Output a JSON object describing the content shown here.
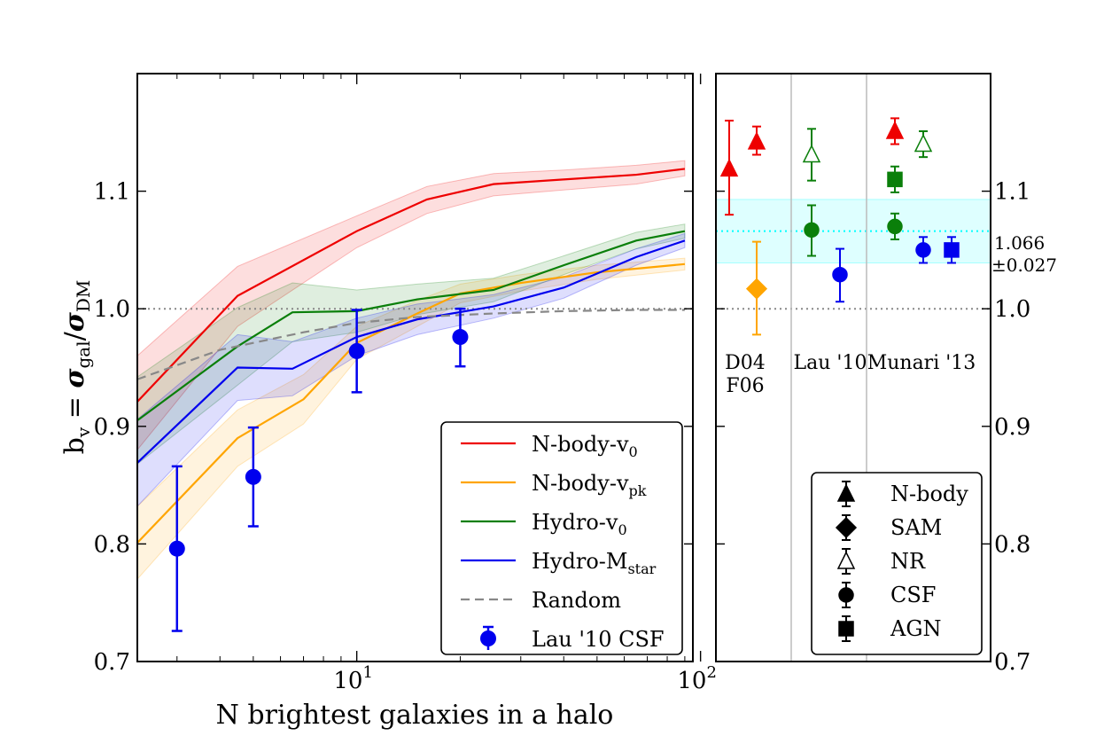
{
  "chart_data": [
    {
      "type": "line",
      "xscale": "log",
      "xlim": [
        2.3,
        95
      ],
      "ylim": [
        0.7,
        1.2
      ],
      "xlabel": "N brightest galaxies in a halo",
      "ylabel": "b_v = σ_gal/σ_DM",
      "ylabel_parts": {
        "b": "b",
        "b_sub": "v",
        "eq": " = ",
        "s1": "σ",
        "s1_sub": "gal",
        "slash": "/",
        "s2": "σ",
        "s2_sub": "DM"
      },
      "xticks": [
        {
          "value": 10,
          "base": "10",
          "exp": "1"
        },
        {
          "value": 100,
          "base": "10",
          "exp": "2"
        }
      ],
      "yticks": [
        {
          "value": 0.7,
          "label": "0.7"
        },
        {
          "value": 0.8,
          "label": "0.8"
        },
        {
          "value": 0.9,
          "label": "0.9"
        },
        {
          "value": 1.0,
          "label": "1.0"
        },
        {
          "value": 1.1,
          "label": "1.1"
        }
      ],
      "reference_line": {
        "y": 1.0,
        "color": "#888888",
        "style": "dotted"
      },
      "legend_position": "lower-right",
      "series": [
        {
          "name": "N-body-v0",
          "label": "N-body-v",
          "label_sub": "0",
          "color": "#ee0000",
          "x": [
            2.3,
            4.5,
            10,
            16,
            25,
            40,
            65,
            90
          ],
          "y": [
            0.921,
            1.011,
            1.066,
            1.093,
            1.106,
            1.11,
            1.114,
            1.119
          ],
          "band_low": [
            0.88,
            0.985,
            1.052,
            1.081,
            1.096,
            1.101,
            1.106,
            1.113
          ],
          "band_high": [
            0.96,
            1.036,
            1.079,
            1.104,
            1.115,
            1.118,
            1.122,
            1.126
          ]
        },
        {
          "name": "N-body-vpk",
          "label": "N-body-v",
          "label_sub": "pk",
          "color": "#ffa500",
          "x": [
            2.3,
            4.5,
            7,
            10,
            15,
            20,
            30,
            50,
            90
          ],
          "y": [
            0.801,
            0.89,
            0.923,
            0.971,
            0.996,
            1.013,
            1.022,
            1.031,
            1.038
          ],
          "band_low": [
            0.77,
            0.866,
            0.902,
            0.957,
            0.985,
            1.005,
            1.015,
            1.025,
            1.033
          ],
          "band_high": [
            0.832,
            0.914,
            0.944,
            0.985,
            1.007,
            1.021,
            1.029,
            1.037,
            1.043
          ]
        },
        {
          "name": "Hydro-v0",
          "label": "Hydro-v",
          "label_sub": "0",
          "color": "#0a7f0a",
          "x": [
            2.3,
            4.5,
            6.5,
            10,
            15,
            25,
            40,
            65,
            90
          ],
          "y": [
            0.905,
            0.968,
            0.997,
            0.998,
            1.008,
            1.016,
            1.037,
            1.058,
            1.066
          ],
          "band_low": [
            0.868,
            0.935,
            0.972,
            0.98,
            0.995,
            1.006,
            1.029,
            1.051,
            1.06
          ],
          "band_high": [
            0.942,
            1.001,
            1.022,
            1.016,
            1.021,
            1.026,
            1.045,
            1.065,
            1.072
          ]
        },
        {
          "name": "Hydro-Mstar",
          "label": "Hydro-M",
          "label_sub": "star",
          "color": "#0000ee",
          "x": [
            2.3,
            4.5,
            6.5,
            10,
            15,
            25,
            40,
            65,
            90
          ],
          "y": [
            0.869,
            0.95,
            0.949,
            0.976,
            0.991,
            1.002,
            1.018,
            1.044,
            1.058
          ],
          "band_low": [
            0.832,
            0.922,
            0.926,
            0.96,
            0.978,
            0.992,
            1.009,
            1.037,
            1.052
          ],
          "band_high": [
            0.906,
            0.978,
            0.972,
            0.992,
            1.004,
            1.012,
            1.027,
            1.051,
            1.064
          ]
        },
        {
          "name": "Random",
          "label": "Random",
          "color": "#888888",
          "style": "dashed",
          "x": [
            2.3,
            4,
            7,
            10,
            15,
            25,
            40,
            65,
            90
          ],
          "y": [
            0.94,
            0.965,
            0.98,
            0.988,
            0.993,
            0.996,
            0.998,
            0.999,
            0.999
          ]
        }
      ],
      "points": {
        "name": "Lau '10 CSF",
        "label": "Lau '10 CSF",
        "color": "#0000ee",
        "x": [
          3,
          5,
          10,
          20
        ],
        "y": [
          0.796,
          0.857,
          0.964,
          0.976
        ],
        "err_low": [
          0.726,
          0.815,
          0.929,
          0.951
        ],
        "err_high": [
          0.866,
          0.899,
          0.999,
          1.0
        ]
      }
    },
    {
      "type": "scatter",
      "ylim": [
        0.7,
        1.2
      ],
      "yticks": [
        {
          "value": 0.7,
          "label": "0.7"
        },
        {
          "value": 0.8,
          "label": "0.8"
        },
        {
          "value": 0.9,
          "label": "0.9"
        },
        {
          "value": 1.0,
          "label": "1.0"
        },
        {
          "value": 1.1,
          "label": "1.1"
        }
      ],
      "ytick_side": "right",
      "reference_line": {
        "y": 1.0,
        "color": "#888888",
        "style": "dotted"
      },
      "band": {
        "center": 1.066,
        "halfwidth": 0.027,
        "label_value": "1.066",
        "label_err": "±0.027",
        "color": "#00ffff"
      },
      "groups": [
        {
          "name": "d04-f06",
          "lines": [
            "D04",
            "F06"
          ]
        },
        {
          "name": "lau",
          "lines": [
            "Lau '10"
          ]
        },
        {
          "name": "munari",
          "lines": [
            "Munari '13"
          ]
        }
      ],
      "points": [
        {
          "id": "d04-nbody",
          "group": 0,
          "slot": 0,
          "marker": "triangle",
          "filled": true,
          "color": "#ee0000",
          "y": 1.119,
          "err_low": 1.08,
          "err_high": 1.16
        },
        {
          "id": "f06-nbody",
          "group": 0,
          "slot": 1,
          "marker": "triangle",
          "filled": true,
          "color": "#ee0000",
          "y": 1.142,
          "err_low": 1.131,
          "err_high": 1.155
        },
        {
          "id": "f06-sam",
          "group": 0,
          "slot": 1,
          "marker": "diamond",
          "filled": true,
          "color": "#ffa500",
          "y": 1.017,
          "err_low": 0.978,
          "err_high": 1.057
        },
        {
          "id": "lau-nr",
          "group": 1,
          "slot": 0,
          "marker": "triangle",
          "filled": false,
          "color": "#0a7f0a",
          "y": 1.131,
          "err_low": 1.109,
          "err_high": 1.153
        },
        {
          "id": "lau-csf-green",
          "group": 1,
          "slot": 0,
          "marker": "circle",
          "filled": true,
          "color": "#0a7f0a",
          "y": 1.067,
          "err_low": 1.045,
          "err_high": 1.088
        },
        {
          "id": "lau-csf-blue",
          "group": 1,
          "slot": 1,
          "marker": "circle",
          "filled": true,
          "color": "#0000ee",
          "y": 1.029,
          "err_low": 1.006,
          "err_high": 1.051
        },
        {
          "id": "munari-nbody",
          "group": 2,
          "slot": 0,
          "marker": "triangle",
          "filled": true,
          "color": "#ee0000",
          "y": 1.151,
          "err_low": 1.14,
          "err_high": 1.162
        },
        {
          "id": "munari-nr",
          "group": 2,
          "slot": 1,
          "marker": "triangle",
          "filled": false,
          "color": "#0a7f0a",
          "y": 1.14,
          "err_low": 1.129,
          "err_high": 1.151
        },
        {
          "id": "munari-agn-green",
          "group": 2,
          "slot": 0,
          "marker": "square",
          "filled": true,
          "color": "#0a7f0a",
          "y": 1.11,
          "err_low": 1.099,
          "err_high": 1.121
        },
        {
          "id": "munari-csf-green",
          "group": 2,
          "slot": 0,
          "marker": "circle",
          "filled": true,
          "color": "#0a7f0a",
          "y": 1.07,
          "err_low": 1.059,
          "err_high": 1.081
        },
        {
          "id": "munari-csf-blue",
          "group": 2,
          "slot": 1,
          "marker": "circle",
          "filled": true,
          "color": "#0000ee",
          "y": 1.05,
          "err_low": 1.039,
          "err_high": 1.061
        },
        {
          "id": "munari-agn-blue",
          "group": 2,
          "slot": 2,
          "marker": "square",
          "filled": true,
          "color": "#0000ee",
          "y": 1.05,
          "err_low": 1.039,
          "err_high": 1.061
        }
      ],
      "legend_position": "lower-center",
      "legend": [
        {
          "marker": "triangle",
          "filled": true,
          "label": "N-body"
        },
        {
          "marker": "diamond",
          "filled": true,
          "label": "SAM"
        },
        {
          "marker": "triangle",
          "filled": false,
          "label": "NR"
        },
        {
          "marker": "circle",
          "filled": true,
          "label": "CSF"
        },
        {
          "marker": "square",
          "filled": true,
          "label": "AGN"
        }
      ]
    }
  ]
}
